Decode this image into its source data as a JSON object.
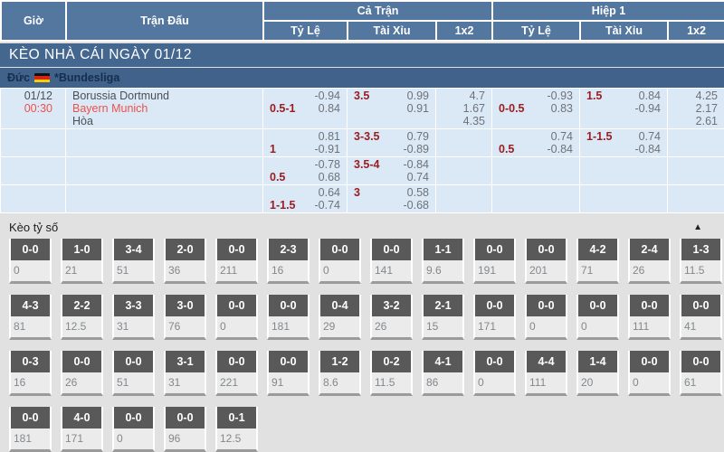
{
  "header": {
    "col_time": "Giờ",
    "col_match": "Trận Đấu",
    "group_full": "Cả Trận",
    "group_half": "Hiệp 1",
    "sub_odds": "Tỷ Lệ",
    "sub_ou": "Tài Xỉu",
    "sub_1x2": "1x2"
  },
  "section_bar": {
    "title": "KÈO NHÀ CÁI NGÀY 01/12"
  },
  "league_bar": {
    "country": "Đức",
    "flag": "germany-flag-icon",
    "league": "*Bundesliga"
  },
  "match": {
    "date": "01/12",
    "time": "00:30",
    "home": "Borussia Dortmund",
    "away": "Bayern Munich",
    "draw": "Hòa"
  },
  "odds_rows": [
    {
      "ft_hdp": {
        "hdp": "0.5-1",
        "hdpLine": 2,
        "odds": [
          "-0.94",
          "0.84"
        ]
      },
      "ft_ou": {
        "hdp": "3.5",
        "hdpLine": 1,
        "odds": [
          "0.99",
          "0.91"
        ]
      },
      "ft_1x2": {
        "odds": [
          "4.7",
          "1.67",
          "4.35"
        ]
      },
      "h1_hdp": {
        "hdp": "0-0.5",
        "hdpLine": 2,
        "odds": [
          "-0.93",
          "0.83"
        ]
      },
      "h1_ou": {
        "hdp": "1.5",
        "hdpLine": 1,
        "odds": [
          "0.84",
          "-0.94"
        ]
      },
      "h1_1x2": {
        "odds": [
          "4.25",
          "2.17",
          "2.61"
        ]
      }
    },
    {
      "ft_hdp": {
        "hdp": "1",
        "hdpLine": 2,
        "odds": [
          "0.81",
          "-0.91"
        ]
      },
      "ft_ou": {
        "hdp": "3-3.5",
        "hdpLine": 1,
        "odds": [
          "0.79",
          "-0.89"
        ]
      },
      "ft_1x2": {
        "odds": []
      },
      "h1_hdp": {
        "hdp": "0.5",
        "hdpLine": 2,
        "odds": [
          "0.74",
          "-0.84"
        ]
      },
      "h1_ou": {
        "hdp": "1-1.5",
        "hdpLine": 1,
        "odds": [
          "0.74",
          "-0.84"
        ]
      },
      "h1_1x2": {
        "odds": []
      }
    },
    {
      "ft_hdp": {
        "hdp": "0.5",
        "hdpLine": 2,
        "odds": [
          "-0.78",
          "0.68"
        ]
      },
      "ft_ou": {
        "hdp": "3.5-4",
        "hdpLine": 1,
        "odds": [
          "-0.84",
          "0.74"
        ]
      },
      "ft_1x2": {
        "odds": []
      },
      "h1_hdp": {
        "odds": []
      },
      "h1_ou": {
        "odds": []
      },
      "h1_1x2": {
        "odds": []
      }
    },
    {
      "ft_hdp": {
        "hdp": "1-1.5",
        "hdpLine": 2,
        "odds": [
          "0.64",
          "-0.74"
        ]
      },
      "ft_ou": {
        "hdp": "3",
        "hdpLine": 1,
        "odds": [
          "0.58",
          "-0.68"
        ]
      },
      "ft_1x2": {
        "odds": []
      },
      "h1_hdp": {
        "odds": []
      },
      "h1_ou": {
        "odds": []
      },
      "h1_1x2": {
        "odds": []
      }
    }
  ],
  "score_section": {
    "title": "Kèo tỷ số",
    "collapse_icon": "▲"
  },
  "score_rows": [
    [
      {
        "score": "0-0",
        "odds": "0"
      },
      {
        "score": "1-0",
        "odds": "21"
      },
      {
        "score": "3-4",
        "odds": "51"
      },
      {
        "score": "2-0",
        "odds": "36"
      },
      {
        "score": "0-0",
        "odds": "211"
      },
      {
        "score": "2-3",
        "odds": "16"
      },
      {
        "score": "0-0",
        "odds": "0"
      },
      {
        "score": "0-0",
        "odds": "141"
      },
      {
        "score": "1-1",
        "odds": "9.6"
      },
      {
        "score": "0-0",
        "odds": "191"
      },
      {
        "score": "0-0",
        "odds": "201"
      },
      {
        "score": "4-2",
        "odds": "71"
      },
      {
        "score": "2-4",
        "odds": "26"
      },
      {
        "score": "1-3",
        "odds": "11.5"
      }
    ],
    [
      {
        "score": "4-3",
        "odds": "81"
      },
      {
        "score": "2-2",
        "odds": "12.5"
      },
      {
        "score": "3-3",
        "odds": "31"
      },
      {
        "score": "3-0",
        "odds": "76"
      },
      {
        "score": "0-0",
        "odds": "0"
      },
      {
        "score": "0-0",
        "odds": "181"
      },
      {
        "score": "0-4",
        "odds": "29"
      },
      {
        "score": "3-2",
        "odds": "26"
      },
      {
        "score": "2-1",
        "odds": "15"
      },
      {
        "score": "0-0",
        "odds": "171"
      },
      {
        "score": "0-0",
        "odds": "0"
      },
      {
        "score": "0-0",
        "odds": "0"
      },
      {
        "score": "0-0",
        "odds": "111"
      },
      {
        "score": "0-0",
        "odds": "41"
      }
    ],
    [
      {
        "score": "0-3",
        "odds": "16"
      },
      {
        "score": "0-0",
        "odds": "26"
      },
      {
        "score": "0-0",
        "odds": "51"
      },
      {
        "score": "3-1",
        "odds": "31"
      },
      {
        "score": "0-0",
        "odds": "221"
      },
      {
        "score": "0-0",
        "odds": "91"
      },
      {
        "score": "1-2",
        "odds": "8.6"
      },
      {
        "score": "0-2",
        "odds": "11.5"
      },
      {
        "score": "4-1",
        "odds": "86"
      },
      {
        "score": "0-0",
        "odds": "0"
      },
      {
        "score": "4-4",
        "odds": "111"
      },
      {
        "score": "1-4",
        "odds": "20"
      },
      {
        "score": "0-0",
        "odds": "0"
      },
      {
        "score": "0-0",
        "odds": "61"
      }
    ],
    [
      {
        "score": "0-0",
        "odds": "181"
      },
      {
        "score": "4-0",
        "odds": "171"
      },
      {
        "score": "0-0",
        "odds": "0"
      },
      {
        "score": "0-0",
        "odds": "96"
      },
      {
        "score": "0-1",
        "odds": "12.5"
      }
    ]
  ],
  "colors": {
    "header_bg": "#54779f",
    "bar_bg": "#44678f",
    "league_bg": "#40628b",
    "row_bg": "#dbe8f6",
    "handicap_red": "#9a1c1f",
    "team_red": "#ee5149",
    "score_label_bg": "#595959",
    "section_bg": "#e1e1e1"
  }
}
